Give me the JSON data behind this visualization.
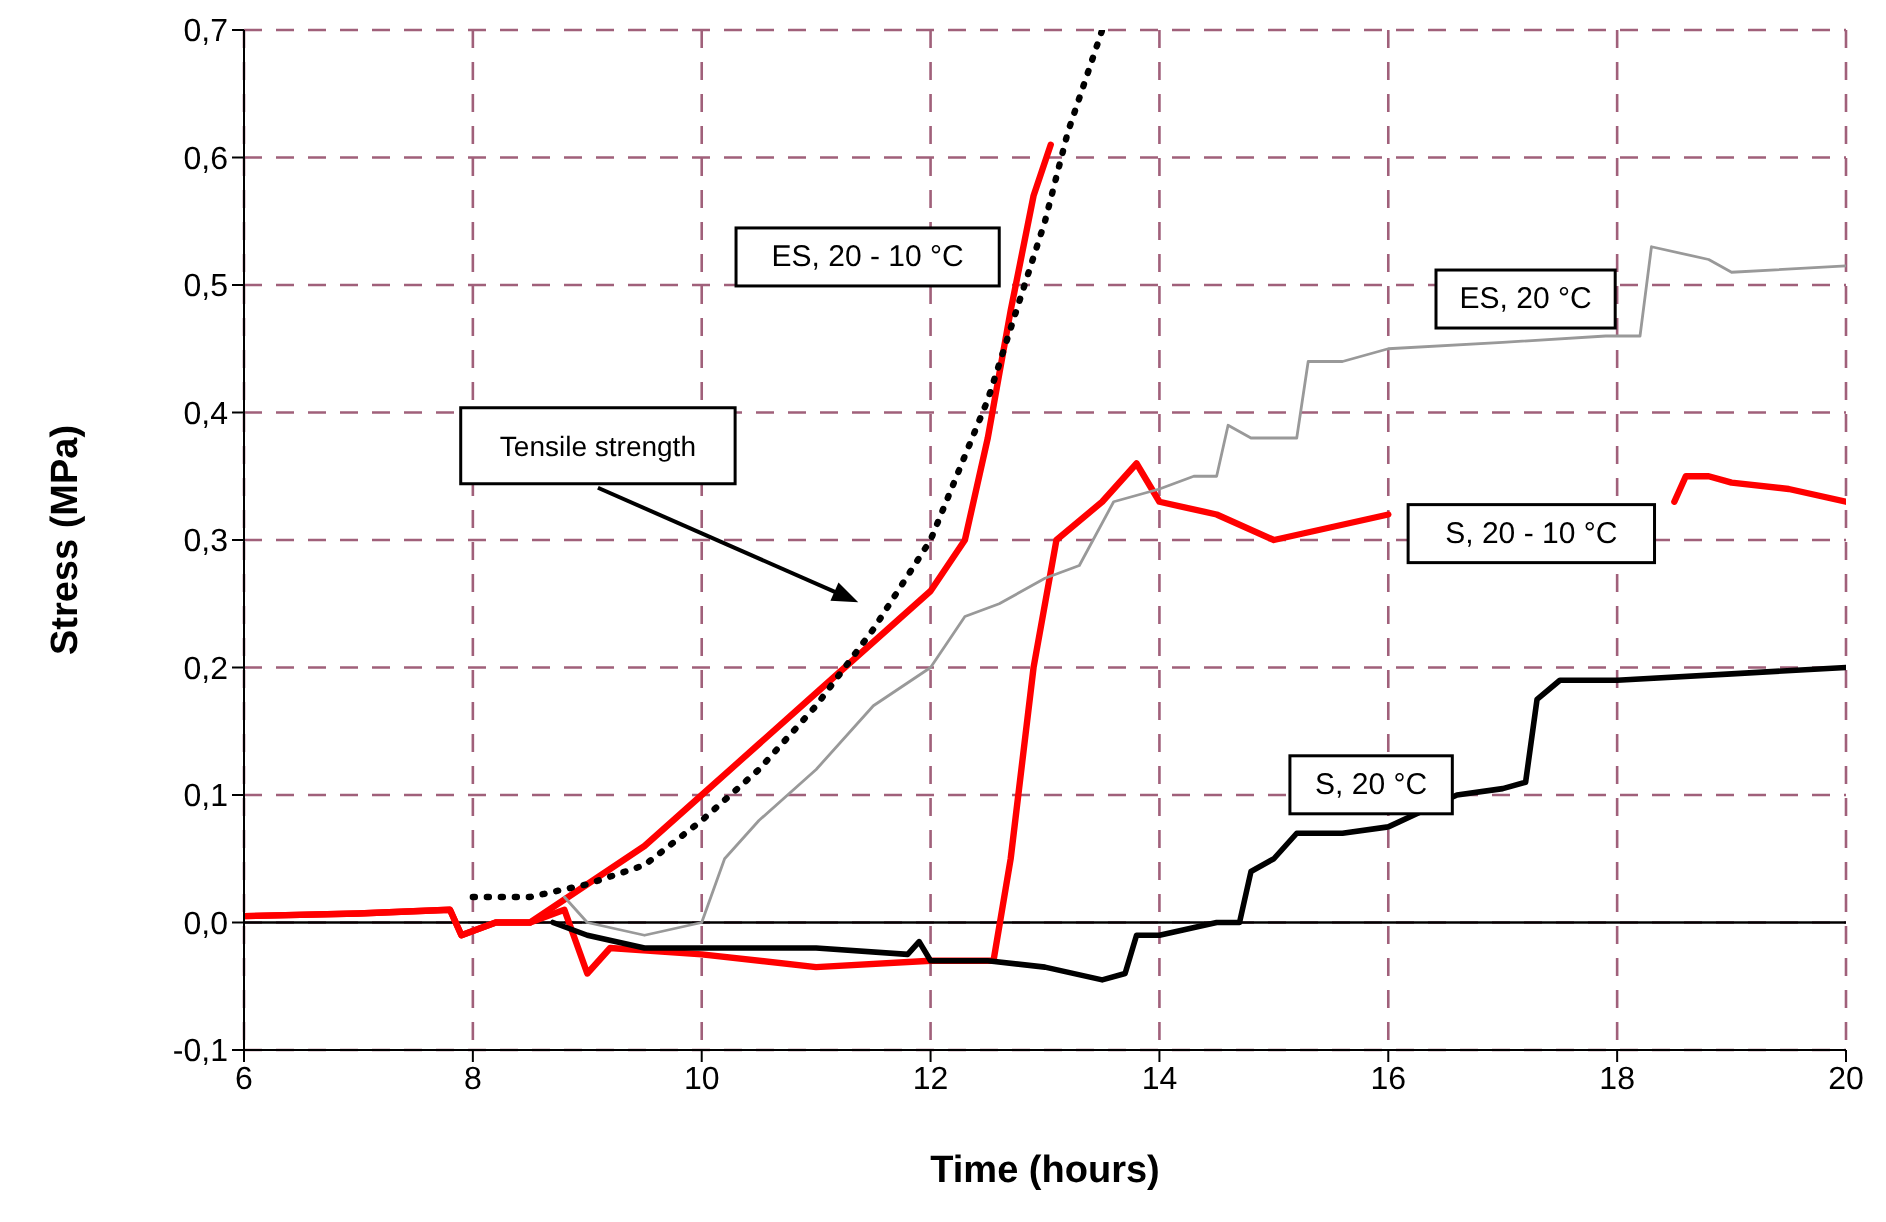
{
  "chart_data": {
    "type": "line",
    "xlabel": "Time (hours)",
    "ylabel": "Stress (MPa)",
    "xlim": [
      6,
      20
    ],
    "xticks": [
      6,
      8,
      10,
      12,
      14,
      16,
      18,
      20
    ],
    "ylim": [
      -0.1,
      0.7
    ],
    "yticks": [
      {
        "value": -0.1,
        "label": "-0,1"
      },
      {
        "value": 0,
        "label": "0,0"
      },
      {
        "value": 0.1,
        "label": "0,1"
      },
      {
        "value": 0.2,
        "label": "0,2"
      },
      {
        "value": 0.3,
        "label": "0,3"
      },
      {
        "value": 0.4,
        "label": "0,4"
      },
      {
        "value": 0.5,
        "label": "0,5"
      },
      {
        "value": 0.6,
        "label": "0,6"
      },
      {
        "value": 0.7,
        "label": "0,7"
      }
    ],
    "grid": true,
    "marker": "none",
    "ref_lines": [
      {
        "axis": "y",
        "value": 0,
        "color": "#000000"
      }
    ],
    "annotations": [
      "Tensile strength"
    ],
    "series": [
      {
        "name": "ES, 20 - 10 °C",
        "color": "#ff0000",
        "x": [
          6,
          7,
          7.8,
          7.9,
          8.2,
          8.5,
          9,
          9.5,
          10,
          10.5,
          11,
          11.5,
          12,
          12.3,
          12.5,
          12.7,
          12.9,
          13.05
        ],
        "values": [
          0.005,
          0.007,
          0.01,
          -0.01,
          0.0,
          0.0,
          0.03,
          0.06,
          0.1,
          0.14,
          0.18,
          0.22,
          0.26,
          0.3,
          0.38,
          0.48,
          0.57,
          0.61
        ]
      },
      {
        "name": "S, 20 - 10 °C",
        "color": "#ff0000",
        "x": [
          6,
          7,
          7.8,
          7.9,
          8.2,
          8.5,
          8.8,
          9.0,
          9.2,
          10,
          11,
          12,
          12.55,
          12.7,
          12.9,
          13.1,
          13.5,
          13.8,
          14,
          14.5,
          15,
          15.5,
          16,
          16.1,
          18.5,
          18.6,
          18.8,
          19,
          19.5,
          20
        ],
        "values": [
          0.005,
          0.007,
          0.01,
          -0.01,
          0.0,
          0.0,
          0.01,
          -0.04,
          -0.02,
          -0.025,
          -0.035,
          -0.03,
          -0.03,
          0.05,
          0.2,
          0.3,
          0.33,
          0.36,
          0.33,
          0.32,
          0.3,
          0.31,
          0.32,
          null,
          0.33,
          0.35,
          0.35,
          0.345,
          0.34,
          0.33
        ]
      },
      {
        "name": "ES, 20 °C",
        "color": "#999999",
        "x": [
          8.8,
          9,
          9.5,
          10,
          10.2,
          10.5,
          11,
          11.5,
          12,
          12.3,
          12.6,
          13,
          13.3,
          13.6,
          14,
          14.3,
          14.5,
          14.6,
          14.8,
          15.2,
          15.3,
          15.6,
          16,
          17,
          17.9,
          18.2,
          18.3,
          18.8,
          19,
          20
        ],
        "values": [
          0.02,
          0.0,
          -0.01,
          0.0,
          0.05,
          0.08,
          0.12,
          0.17,
          0.2,
          0.24,
          0.25,
          0.27,
          0.28,
          0.33,
          0.34,
          0.35,
          0.35,
          0.39,
          0.38,
          0.38,
          0.44,
          0.44,
          0.45,
          0.455,
          0.46,
          0.46,
          0.53,
          0.52,
          0.51,
          0.515
        ]
      },
      {
        "name": "S, 20 °C",
        "color": "#000000",
        "x": [
          8.7,
          9,
          9.5,
          10,
          11,
          11.8,
          11.9,
          12,
          12.5,
          13,
          13.5,
          13.7,
          13.8,
          14,
          14.5,
          14.7,
          14.8,
          15,
          15.2,
          15.6,
          16,
          16.6,
          17,
          17.2,
          17.3,
          17.5,
          18,
          19,
          20
        ],
        "values": [
          0.0,
          -0.01,
          -0.02,
          -0.02,
          -0.02,
          -0.025,
          -0.015,
          -0.03,
          -0.03,
          -0.035,
          -0.045,
          -0.04,
          -0.01,
          -0.01,
          0.0,
          0.0,
          0.04,
          0.05,
          0.07,
          0.07,
          0.075,
          0.1,
          0.105,
          0.11,
          0.175,
          0.19,
          0.19,
          0.195,
          0.2
        ]
      },
      {
        "type": "line",
        "line_style": "dotted",
        "color": "#000000",
        "x": [
          8,
          8.5,
          9,
          9.5,
          10,
          10.5,
          11,
          11.5,
          12,
          12.5,
          13,
          13.2,
          13.5
        ],
        "values": [
          0.02,
          0.02,
          0.03,
          0.045,
          0.08,
          0.12,
          0.17,
          0.23,
          0.3,
          0.41,
          0.55,
          0.62,
          0.7
        ]
      }
    ]
  }
}
